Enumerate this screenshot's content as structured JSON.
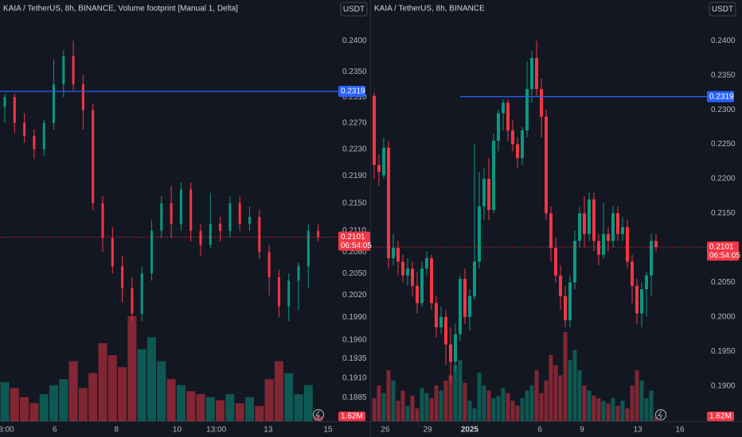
{
  "chart_data": [
    {
      "type": "candlestick",
      "title": "KAIA / TetherUS, 8h, BINANCE, Volume footprint [Manual 1, Delta]",
      "currency": "USDT",
      "log": true,
      "up_color": "#089981",
      "down_color": "#f23645",
      "hline_color": "#2962ff",
      "open": [
        0.2295,
        0.231,
        0.227,
        0.225,
        0.223,
        0.227,
        0.233,
        0.2375,
        0.233,
        0.229,
        0.215,
        0.21,
        0.206,
        0.203,
        0.1995,
        0.205,
        0.211,
        0.215,
        0.212,
        0.217,
        0.211,
        0.209,
        0.212,
        0.211,
        0.215,
        0.212,
        0.213,
        0.208,
        0.2045,
        0.2005,
        0.204,
        0.206,
        0.211
      ],
      "high": [
        0.2315,
        0.2315,
        0.2285,
        0.226,
        0.2275,
        0.237,
        0.2385,
        0.24,
        0.2345,
        0.23,
        0.216,
        0.2115,
        0.2075,
        0.2045,
        0.206,
        0.2125,
        0.216,
        0.2175,
        0.218,
        0.218,
        0.212,
        0.2165,
        0.213,
        0.216,
        0.216,
        0.2145,
        0.214,
        0.209,
        0.2055,
        0.205,
        0.2065,
        0.212,
        0.212
      ],
      "low": [
        0.227,
        0.2255,
        0.224,
        0.2215,
        0.222,
        0.226,
        0.231,
        0.232,
        0.226,
        0.214,
        0.208,
        0.205,
        0.201,
        0.1985,
        0.1985,
        0.204,
        0.21,
        0.21,
        0.211,
        0.2095,
        0.2075,
        0.2085,
        0.2095,
        0.21,
        0.211,
        0.211,
        0.207,
        0.202,
        0.199,
        0.1985,
        0.2,
        0.203,
        0.2095
      ],
      "close": [
        0.231,
        0.227,
        0.225,
        0.223,
        0.227,
        0.233,
        0.2375,
        0.233,
        0.229,
        0.215,
        0.21,
        0.206,
        0.203,
        0.1995,
        0.205,
        0.211,
        0.215,
        0.212,
        0.217,
        0.211,
        0.209,
        0.212,
        0.211,
        0.215,
        0.212,
        0.213,
        0.208,
        0.2045,
        0.2005,
        0.204,
        0.206,
        0.211,
        0.2101
      ],
      "volume": [
        13,
        11,
        8,
        6,
        9,
        12,
        14,
        20,
        11,
        16,
        26,
        22,
        18,
        35,
        24,
        28,
        20,
        14,
        12,
        10,
        9,
        8,
        7,
        9,
        6,
        8,
        5,
        14,
        20,
        16,
        9,
        12,
        1.62
      ],
      "volume_last_label": "1.62M",
      "countdown": "06:54:05",
      "hline": 0.2319,
      "ylim": [
        0.1855,
        0.2467
      ],
      "yticks": [
        {
          "value": 0.24,
          "label": "0.2400"
        },
        {
          "value": 0.235,
          "label": "0.2350"
        },
        {
          "value": 0.231,
          "label": "0.2310"
        },
        {
          "value": 0.227,
          "label": "0.2270"
        },
        {
          "value": 0.223,
          "label": "0.2230"
        },
        {
          "value": 0.219,
          "label": "0.2190"
        },
        {
          "value": 0.215,
          "label": "0.2150"
        },
        {
          "value": 0.211,
          "label": "0.2110"
        },
        {
          "value": 0.208,
          "label": "0.2080"
        },
        {
          "value": 0.205,
          "label": "0.2050"
        },
        {
          "value": 0.202,
          "label": "0.2020"
        },
        {
          "value": 0.199,
          "label": "0.1990"
        },
        {
          "value": 0.196,
          "label": "0.1960"
        },
        {
          "value": 0.1935,
          "label": "0.1935"
        },
        {
          "value": 0.191,
          "label": "0.1910"
        },
        {
          "value": 0.1885,
          "label": "0.1885"
        }
      ],
      "xticks": [
        {
          "value": 0.16,
          "label": "3:00"
        },
        {
          "value": 5.1,
          "label": "6"
        },
        {
          "value": 11.4,
          "label": "8"
        },
        {
          "value": 17.6,
          "label": "10"
        },
        {
          "value": 21.6,
          "label": "13:00"
        },
        {
          "value": 26.9,
          "label": "13"
        },
        {
          "value": 33.0,
          "label": "15"
        }
      ]
    },
    {
      "type": "candlestick",
      "title": "KAIA / TetherUS, 8h, BINANCE",
      "currency": "USDT",
      "log": false,
      "up_color": "#089981",
      "down_color": "#f23645",
      "hline_color": "#2962ff",
      "open": [
        0.232,
        0.222,
        0.2205,
        0.2245,
        0.2085,
        0.21,
        0.208,
        0.206,
        0.207,
        0.2045,
        0.202,
        0.207,
        0.2085,
        0.202,
        0.1985,
        0.2,
        0.196,
        0.1935,
        0.1975,
        0.2055,
        0.2,
        0.203,
        0.208,
        0.216,
        0.22,
        0.2155,
        0.2255,
        0.2295,
        0.231,
        0.227,
        0.225,
        0.223,
        0.227,
        0.233,
        0.2375,
        0.233,
        0.229,
        0.215,
        0.21,
        0.206,
        0.203,
        0.1995,
        0.205,
        0.211,
        0.215,
        0.212,
        0.217,
        0.211,
        0.209,
        0.212,
        0.211,
        0.215,
        0.212,
        0.213,
        0.208,
        0.2045,
        0.2005,
        0.204,
        0.206,
        0.211
      ],
      "high": [
        0.2325,
        0.2235,
        0.226,
        0.2255,
        0.212,
        0.211,
        0.209,
        0.2085,
        0.208,
        0.2065,
        0.208,
        0.2095,
        0.209,
        0.203,
        0.2015,
        0.201,
        0.1985,
        0.199,
        0.206,
        0.207,
        0.204,
        0.225,
        0.221,
        0.2215,
        0.223,
        0.2265,
        0.23,
        0.2315,
        0.2315,
        0.2285,
        0.226,
        0.2275,
        0.237,
        0.2385,
        0.24,
        0.2345,
        0.23,
        0.216,
        0.2115,
        0.2075,
        0.2045,
        0.206,
        0.2125,
        0.216,
        0.2175,
        0.218,
        0.218,
        0.212,
        0.2165,
        0.213,
        0.216,
        0.216,
        0.2145,
        0.214,
        0.209,
        0.2055,
        0.205,
        0.2065,
        0.212,
        0.212
      ],
      "low": [
        0.22,
        0.219,
        0.22,
        0.207,
        0.2075,
        0.206,
        0.205,
        0.2045,
        0.203,
        0.2005,
        0.2015,
        0.206,
        0.201,
        0.197,
        0.1975,
        0.193,
        0.1905,
        0.192,
        0.1965,
        0.199,
        0.198,
        0.2025,
        0.207,
        0.214,
        0.214,
        0.215,
        0.224,
        0.227,
        0.2255,
        0.224,
        0.2215,
        0.222,
        0.226,
        0.231,
        0.232,
        0.226,
        0.214,
        0.208,
        0.205,
        0.201,
        0.1985,
        0.1985,
        0.204,
        0.21,
        0.21,
        0.211,
        0.2095,
        0.2075,
        0.2085,
        0.2095,
        0.21,
        0.211,
        0.211,
        0.207,
        0.202,
        0.199,
        0.1985,
        0.2,
        0.203,
        0.2095
      ],
      "close": [
        0.222,
        0.221,
        0.2245,
        0.2085,
        0.21,
        0.208,
        0.206,
        0.207,
        0.2045,
        0.202,
        0.207,
        0.2085,
        0.202,
        0.1985,
        0.2,
        0.196,
        0.1935,
        0.1975,
        0.2055,
        0.2,
        0.203,
        0.208,
        0.216,
        0.22,
        0.2155,
        0.2255,
        0.2295,
        0.231,
        0.227,
        0.225,
        0.223,
        0.227,
        0.233,
        0.2375,
        0.233,
        0.229,
        0.215,
        0.21,
        0.206,
        0.203,
        0.1995,
        0.205,
        0.211,
        0.215,
        0.212,
        0.217,
        0.211,
        0.209,
        0.212,
        0.211,
        0.215,
        0.212,
        0.213,
        0.208,
        0.2045,
        0.2005,
        0.204,
        0.206,
        0.211,
        0.2101
      ],
      "volume": [
        9,
        14,
        11,
        20,
        16,
        8,
        12,
        6,
        10,
        5,
        13,
        11,
        9,
        14,
        12,
        16,
        18,
        22,
        24,
        15,
        8,
        5,
        19,
        14,
        12,
        9,
        10,
        13,
        11,
        8,
        6,
        9,
        12,
        14,
        20,
        11,
        16,
        26,
        22,
        18,
        35,
        24,
        28,
        20,
        14,
        12,
        10,
        9,
        8,
        7,
        9,
        6,
        8,
        5,
        14,
        20,
        16,
        9,
        12,
        1.62
      ],
      "volume_last_label": "1.62M",
      "countdown": "06:54:05",
      "hline": 0.2319,
      "ylim": [
        0.1849,
        0.2459
      ],
      "yticks": [
        {
          "value": 0.24,
          "label": "0.2400"
        },
        {
          "value": 0.235,
          "label": "0.2350"
        },
        {
          "value": 0.23,
          "label": "0.2300"
        },
        {
          "value": 0.225,
          "label": "0.2250"
        },
        {
          "value": 0.22,
          "label": "0.2200"
        },
        {
          "value": 0.215,
          "label": "0.2150"
        },
        {
          "value": 0.205,
          "label": "0.2050"
        },
        {
          "value": 0.2,
          "label": "0.2000"
        },
        {
          "value": 0.195,
          "label": "0.1950"
        },
        {
          "value": 0.19,
          "label": "0.1900"
        }
      ],
      "xticks": [
        {
          "value": 2.33,
          "label": "26"
        },
        {
          "value": 11.2,
          "label": "29"
        },
        {
          "value": 20,
          "label": "2025"
        },
        {
          "value": 34.7,
          "label": "6"
        },
        {
          "value": 43.5,
          "label": "9"
        },
        {
          "value": 55.2,
          "label": "13"
        },
        {
          "value": 64,
          "label": "16"
        }
      ]
    }
  ]
}
